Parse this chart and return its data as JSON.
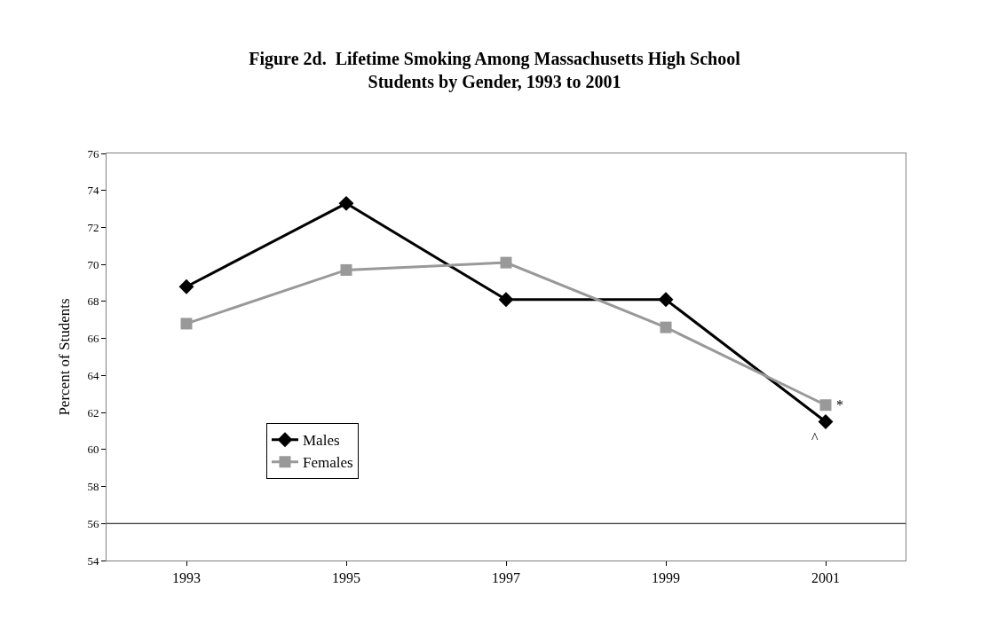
{
  "chart_data": {
    "type": "line",
    "title": "Figure 2d.  Lifetime Smoking Among Massachusetts High School\nStudents by Gender, 1993 to 2001",
    "ylabel": "Percent of Students",
    "categories": [
      "1993",
      "1995",
      "1997",
      "1999",
      "2001"
    ],
    "series": [
      {
        "name": "Males",
        "color": "#000000",
        "marker": "diamond",
        "values": [
          68.8,
          73.3,
          68.1,
          68.1,
          61.5
        ]
      },
      {
        "name": "Females",
        "color": "#999999",
        "marker": "square",
        "values": [
          66.8,
          69.7,
          70.1,
          66.6,
          62.4
        ]
      }
    ],
    "ylim": [
      54,
      76
    ],
    "yticks": [
      54,
      56,
      58,
      60,
      62,
      64,
      66,
      68,
      70,
      72,
      74,
      76
    ],
    "ref_lines": [
      {
        "axis": "y",
        "value": 56,
        "color": "#000000"
      }
    ],
    "annotations": [
      {
        "text": "^",
        "x": "2001",
        "y": 61.5
      },
      {
        "text": "*",
        "x": "2001",
        "y": 62.4
      }
    ],
    "legend": "bottom left",
    "line_style": "solid"
  }
}
